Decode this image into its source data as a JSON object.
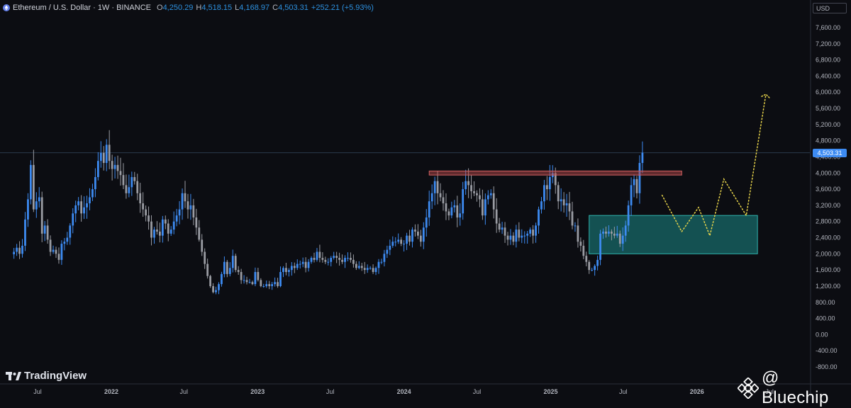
{
  "header": {
    "title": "Ethereum / U.S. Dollar · 1W · BINANCE",
    "open_label": "O",
    "open": "4,250.29",
    "high_label": "H",
    "high": "4,518.15",
    "low_label": "L",
    "low": "4,168.97",
    "close_label": "C",
    "close": "4,503.31",
    "change": "+252.21 (+5.93%)"
  },
  "currency": "USD",
  "last_price_label": "4,503.31",
  "brand": {
    "name": "TradingView"
  },
  "watermark": "@ Bluechip",
  "colors": {
    "up": "#3d8bf2",
    "down": "#9a9ca3",
    "background": "#0c0d12",
    "resistance": "#b84a4a",
    "demand_zone": "#1b8a86",
    "projection": "#e8d44a"
  },
  "chart_data": {
    "type": "candlestick",
    "symbol": "ETHUSD",
    "interval": "1W",
    "x_tick_labels": [
      "Jul",
      "2022",
      "Jul",
      "2023",
      "Jul",
      "2024",
      "Jul",
      "2025",
      "Jul",
      "2026",
      "Jul"
    ],
    "x_tick_dates": [
      "2021-07-01",
      "2022-01-01",
      "2022-07-01",
      "2023-01-01",
      "2023-07-01",
      "2024-01-01",
      "2024-07-01",
      "2025-01-01",
      "2025-07-01",
      "2026-01-01",
      "2026-07-01"
    ],
    "y_ticks": [
      7600,
      7200,
      6800,
      6400,
      6000,
      5600,
      5200,
      4800,
      4400,
      4000,
      3600,
      3200,
      2800,
      2400,
      2000,
      1600,
      1200,
      800,
      400,
      0,
      -400,
      -800
    ],
    "y_tick_labels": [
      "7,600.00",
      "7,200.00",
      "6,800.00",
      "6,400.00",
      "6,000.00",
      "5,600.00",
      "5,200.00",
      "4,800.00",
      "4,400.00",
      "4,000.00",
      "3,600.00",
      "3,200.00",
      "2,800.00",
      "2,400.00",
      "2,000.00",
      "1,600.00",
      "1,200.00",
      "800.00",
      "400.00",
      "0.00",
      "-400.00",
      "-800.00"
    ],
    "ylim": [
      -900,
      8000
    ],
    "closes": [
      2050,
      2150,
      2000,
      2200,
      2850,
      3350,
      4200,
      3100,
      3300,
      3400,
      2500,
      2700,
      2350,
      2050,
      2100,
      2000,
      1850,
      2250,
      2300,
      2400,
      2700,
      3000,
      3200,
      3300,
      3000,
      3150,
      3250,
      3400,
      3600,
      3900,
      4300,
      4500,
      4250,
      4700,
      4300,
      4100,
      4200,
      4050,
      3950,
      3700,
      3500,
      3650,
      3900,
      3800,
      3500,
      3250,
      3100,
      2950,
      2800,
      2400,
      2600,
      2550,
      2450,
      2850,
      2750,
      2500,
      2600,
      2800,
      2950,
      3100,
      3500,
      3300,
      3100,
      3200,
      2900,
      2650,
      2350,
      2050,
      1750,
      1450,
      1200,
      1050,
      1100,
      1250,
      1500,
      1800,
      1500,
      1650,
      1950,
      1600,
      1550,
      1350,
      1350,
      1300,
      1300,
      1250,
      1550,
      1350,
      1200,
      1200,
      1250,
      1200,
      1250,
      1300,
      1200,
      1550,
      1650,
      1550,
      1600,
      1700,
      1650,
      1750,
      1750,
      1800,
      1650,
      1800,
      1900,
      1850,
      2050,
      1900,
      1850,
      1800,
      1800,
      1900,
      1950,
      1900,
      1850,
      1800,
      1900,
      1900,
      1850,
      1750,
      1650,
      1700,
      1650,
      1600,
      1650,
      1650,
      1550,
      1650,
      1800,
      1800,
      2000,
      2100,
      2200,
      2300,
      2300,
      2350,
      2250,
      2250,
      2450,
      2300,
      2600,
      2550,
      2450,
      2300,
      2650,
      2900,
      3300,
      3500,
      3800,
      3500,
      3400,
      3250,
      3050,
      2950,
      3150,
      3200,
      2900,
      3000,
      3600,
      3800,
      3700,
      3550,
      3500,
      3450,
      3350,
      2950,
      3350,
      3450,
      3500,
      3100,
      2750,
      2600,
      2650,
      2450,
      2350,
      2450,
      2300,
      2600,
      2400,
      2450,
      2450,
      2500,
      2600,
      2450,
      2700,
      3100,
      3300,
      3700,
      3600,
      3900,
      4000,
      3700,
      3300,
      3350,
      3200,
      3250,
      3050,
      2700,
      2700,
      2300,
      2200,
      1950,
      1800,
      1600,
      1600,
      1700,
      1850,
      2500,
      2550,
      2500,
      2550,
      2500,
      2450,
      2500,
      2250,
      2450,
      2700,
      3200,
      3700,
      3850,
      3500,
      4250,
      4503
    ],
    "annotations": [
      {
        "type": "resistance_band",
        "y_from": 3950,
        "y_to": 4050,
        "x_from": "2024-03-04",
        "x_to": "2025-11-24"
      },
      {
        "type": "demand_zone",
        "y_from": 2000,
        "y_to": 2950,
        "x_from": "2025-04-07",
        "x_to": "2026-06-01"
      },
      {
        "type": "projection_path",
        "style": "dotted",
        "points": [
          [
            "2025-10-06",
            3450
          ],
          [
            "2025-11-24",
            2550
          ],
          [
            "2026-01-05",
            3150
          ],
          [
            "2026-02-02",
            2450
          ],
          [
            "2026-03-09",
            3850
          ],
          [
            "2026-05-04",
            2950
          ],
          [
            "2026-06-22",
            5950
          ]
        ]
      }
    ],
    "last_price": 4503.31,
    "grid": false,
    "title": "Ethereum / U.S. Dollar · 1W · BINANCE",
    "xlabel": "",
    "ylabel": ""
  }
}
